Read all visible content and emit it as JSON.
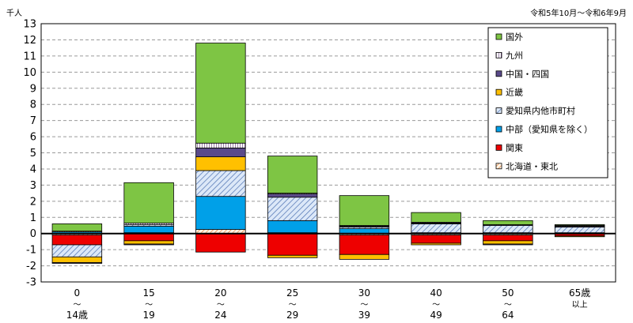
{
  "chart_data": {
    "type": "stacked-bar",
    "unit_label": "千人",
    "period_label": "令和5年10月～令和6年9月",
    "ylim": [
      -3,
      13
    ],
    "yticks": [
      -3,
      -2,
      -1,
      0,
      1,
      2,
      3,
      4,
      5,
      6,
      7,
      8,
      9,
      10,
      11,
      12,
      13
    ],
    "categories": [
      {
        "top": "0",
        "mid": "～",
        "bot": "14歳"
      },
      {
        "top": "15",
        "mid": "～",
        "bot": "19"
      },
      {
        "top": "20",
        "mid": "～",
        "bot": "24"
      },
      {
        "top": "25",
        "mid": "～",
        "bot": "29"
      },
      {
        "top": "30",
        "mid": "～",
        "bot": "39"
      },
      {
        "top": "40",
        "mid": "～",
        "bot": "49"
      },
      {
        "top": "50",
        "mid": "～",
        "bot": "64"
      },
      {
        "top": "65歳",
        "mid": "以上",
        "bot": ""
      }
    ],
    "series": [
      {
        "name": "北海道・東北",
        "color": "#f4a460",
        "pattern": "hatch-orange",
        "values": [
          -0.1,
          0.05,
          0.25,
          0.05,
          -0.1,
          -0.1,
          -0.1,
          0.0
        ]
      },
      {
        "name": "関東",
        "color": "#ee0000",
        "pattern": "",
        "values": [
          -0.6,
          -0.45,
          -1.15,
          -1.35,
          -1.2,
          -0.5,
          -0.35,
          -0.15
        ]
      },
      {
        "name": "中部（愛知県を除く）",
        "color": "#00a0e8",
        "pattern": "",
        "values": [
          0.1,
          0.4,
          2.05,
          0.75,
          0.3,
          0.05,
          0.05,
          0.05
        ]
      },
      {
        "name": "愛知県内他市町村",
        "color": "#b0c4e8",
        "pattern": "hatch-blue",
        "values": [
          -0.75,
          0.1,
          1.6,
          1.45,
          0.1,
          0.55,
          0.45,
          0.35
        ]
      },
      {
        "name": "近畿",
        "color": "#ffc000",
        "pattern": "",
        "values": [
          -0.35,
          -0.2,
          0.85,
          -0.15,
          -0.3,
          -0.1,
          -0.2,
          -0.05
        ]
      },
      {
        "name": "中国・四国",
        "color": "#5a4a8a",
        "pattern": "",
        "values": [
          -0.05,
          -0.05,
          0.55,
          0.2,
          0.05,
          0.05,
          -0.05,
          0.05
        ]
      },
      {
        "name": "九州",
        "color": "#ffffff",
        "pattern": "hatch-purple",
        "values": [
          0.05,
          0.1,
          0.3,
          0.05,
          0.05,
          0.05,
          0.05,
          0.05
        ]
      },
      {
        "name": "国外",
        "color": "#7ec544",
        "pattern": "",
        "values": [
          0.45,
          2.5,
          6.2,
          2.3,
          1.85,
          0.6,
          0.25,
          0.05
        ]
      }
    ],
    "legend_position": "top-right"
  }
}
